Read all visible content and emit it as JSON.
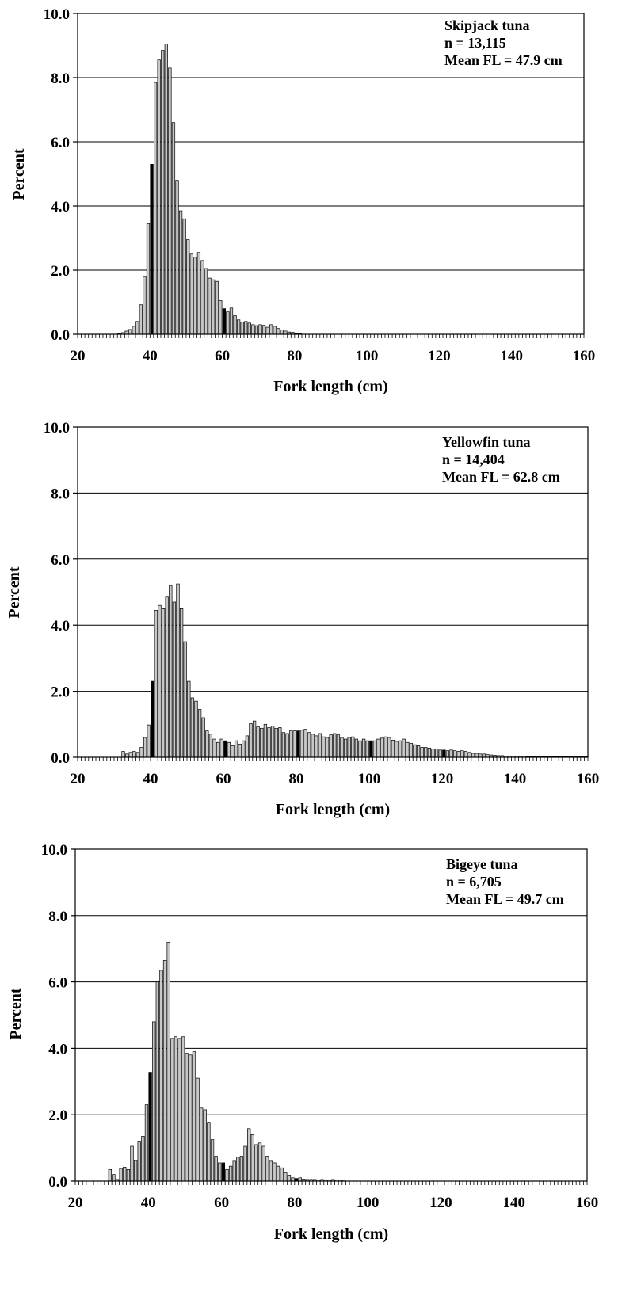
{
  "chart_data": [
    {
      "type": "bar",
      "annotation": [
        "Skipjack tuna",
        "n = 13,115",
        "Mean FL = 47.9 cm"
      ],
      "xlabel": "Fork length (cm)",
      "ylabel": "Percent",
      "xlim": [
        20,
        160
      ],
      "ylim": [
        0,
        10
      ],
      "xticks": [
        "20",
        "40",
        "60",
        "80",
        "100",
        "120",
        "140",
        "160"
      ],
      "yticks": [
        "0.0",
        "2.0",
        "4.0",
        "6.0",
        "8.0",
        "10.0"
      ],
      "grid": "horizontal",
      "bar_color": "#c8c8c8",
      "highlight_color": "#000000",
      "highlight_lengths": [
        40,
        60,
        80,
        100,
        120
      ],
      "x": [
        31,
        32,
        33,
        34,
        35,
        36,
        37,
        38,
        39,
        40,
        41,
        42,
        43,
        44,
        45,
        46,
        47,
        48,
        49,
        50,
        51,
        52,
        53,
        54,
        55,
        56,
        57,
        58,
        59,
        60,
        61,
        62,
        63,
        64,
        65,
        66,
        67,
        68,
        69,
        70,
        71,
        72,
        73,
        74,
        75,
        76,
        77,
        78,
        79,
        80,
        81
      ],
      "values": [
        0.02,
        0.05,
        0.1,
        0.15,
        0.25,
        0.4,
        0.92,
        1.8,
        3.45,
        5.3,
        7.85,
        8.55,
        8.85,
        9.05,
        8.3,
        6.6,
        4.8,
        3.85,
        3.6,
        2.95,
        2.5,
        2.4,
        2.55,
        2.3,
        2.05,
        1.75,
        1.7,
        1.65,
        1.05,
        0.8,
        0.7,
        0.82,
        0.58,
        0.45,
        0.38,
        0.4,
        0.35,
        0.3,
        0.27,
        0.3,
        0.28,
        0.22,
        0.3,
        0.25,
        0.18,
        0.14,
        0.1,
        0.07,
        0.06,
        0.04,
        0.02
      ]
    },
    {
      "type": "bar",
      "annotation": [
        "Yellowfin tuna",
        "n = 14,404",
        "Mean FL = 62.8 cm"
      ],
      "xlabel": "Fork length (cm)",
      "ylabel": "Percent",
      "xlim": [
        20,
        160
      ],
      "ylim": [
        0,
        10
      ],
      "xticks": [
        "20",
        "40",
        "60",
        "80",
        "100",
        "120",
        "140",
        "160"
      ],
      "yticks": [
        "0.0",
        "2.0",
        "4.0",
        "6.0",
        "8.0",
        "10.0"
      ],
      "grid": "horizontal",
      "bar_color": "#c8c8c8",
      "highlight_color": "#000000",
      "highlight_lengths": [
        40,
        60,
        80,
        100,
        120
      ],
      "x": [
        32,
        33,
        34,
        35,
        36,
        37,
        38,
        39,
        40,
        41,
        42,
        43,
        44,
        45,
        46,
        47,
        48,
        49,
        50,
        51,
        52,
        53,
        54,
        55,
        56,
        57,
        58,
        59,
        60,
        61,
        62,
        63,
        64,
        65,
        66,
        67,
        68,
        69,
        70,
        71,
        72,
        73,
        74,
        75,
        76,
        77,
        78,
        79,
        80,
        81,
        82,
        83,
        84,
        85,
        86,
        87,
        88,
        89,
        90,
        91,
        92,
        93,
        94,
        95,
        96,
        97,
        98,
        99,
        100,
        101,
        102,
        103,
        104,
        105,
        106,
        107,
        108,
        109,
        110,
        111,
        112,
        113,
        114,
        115,
        116,
        117,
        118,
        119,
        120,
        121,
        122,
        123,
        124,
        125,
        126,
        127,
        128,
        129,
        130,
        131,
        132,
        133,
        134,
        135,
        136,
        137,
        138,
        139,
        140,
        141,
        142,
        143,
        144,
        145,
        146,
        147,
        148,
        149,
        150,
        151,
        152,
        153,
        154,
        155,
        156,
        157,
        158,
        159
      ],
      "values": [
        0.18,
        0.1,
        0.15,
        0.18,
        0.15,
        0.3,
        0.6,
        0.98,
        2.3,
        4.45,
        4.6,
        4.5,
        4.85,
        5.2,
        4.7,
        5.25,
        4.5,
        3.5,
        2.3,
        1.8,
        1.7,
        1.45,
        1.2,
        0.8,
        0.7,
        0.55,
        0.45,
        0.55,
        0.5,
        0.45,
        0.35,
        0.5,
        0.4,
        0.5,
        0.65,
        1.02,
        1.1,
        0.92,
        0.88,
        1.0,
        0.9,
        0.95,
        0.88,
        0.9,
        0.75,
        0.72,
        0.8,
        0.8,
        0.8,
        0.82,
        0.85,
        0.75,
        0.7,
        0.65,
        0.72,
        0.62,
        0.6,
        0.68,
        0.72,
        0.68,
        0.6,
        0.55,
        0.6,
        0.62,
        0.55,
        0.5,
        0.55,
        0.5,
        0.5,
        0.5,
        0.55,
        0.58,
        0.62,
        0.6,
        0.52,
        0.48,
        0.5,
        0.55,
        0.45,
        0.42,
        0.38,
        0.35,
        0.3,
        0.3,
        0.28,
        0.25,
        0.25,
        0.22,
        0.22,
        0.2,
        0.22,
        0.2,
        0.18,
        0.2,
        0.18,
        0.15,
        0.12,
        0.12,
        0.1,
        0.1,
        0.08,
        0.07,
        0.06,
        0.05,
        0.05,
        0.04,
        0.04,
        0.04,
        0.03,
        0.03,
        0.03,
        0.02,
        0.02,
        0.02,
        0.02,
        0.02,
        0.02,
        0.02,
        0.02,
        0.02,
        0.02,
        0.02,
        0.02,
        0.02,
        0.02,
        0.02,
        0.02,
        0.02
      ]
    },
    {
      "type": "bar",
      "annotation": [
        "Bigeye tuna",
        "n = 6,705",
        "Mean FL = 49.7 cm"
      ],
      "xlabel": "Fork length (cm)",
      "ylabel": "Percent",
      "xlim": [
        20,
        160
      ],
      "ylim": [
        0,
        10
      ],
      "xticks": [
        "20",
        "40",
        "60",
        "80",
        "100",
        "120",
        "140",
        "160"
      ],
      "yticks": [
        "0.0",
        "2.0",
        "4.0",
        "6.0",
        "8.0",
        "10.0"
      ],
      "grid": "horizontal",
      "bar_color": "#c8c8c8",
      "highlight_color": "#000000",
      "highlight_lengths": [
        40,
        60,
        80,
        100,
        120
      ],
      "x": [
        29,
        30,
        31,
        32,
        33,
        34,
        35,
        36,
        37,
        38,
        39,
        40,
        41,
        42,
        43,
        44,
        45,
        46,
        47,
        48,
        49,
        50,
        51,
        52,
        53,
        54,
        55,
        56,
        57,
        58,
        59,
        60,
        61,
        62,
        63,
        64,
        65,
        66,
        67,
        68,
        69,
        70,
        71,
        72,
        73,
        74,
        75,
        76,
        77,
        78,
        79,
        80,
        81,
        82,
        83,
        84,
        85,
        86,
        87,
        88,
        89,
        90,
        91,
        92,
        93
      ],
      "values": [
        0.35,
        0.2,
        0.05,
        0.38,
        0.42,
        0.35,
        1.05,
        0.62,
        1.18,
        1.35,
        2.3,
        3.28,
        4.8,
        6.0,
        6.35,
        6.65,
        7.2,
        4.3,
        4.35,
        4.3,
        4.35,
        3.85,
        3.8,
        3.9,
        3.1,
        2.2,
        2.15,
        1.75,
        1.25,
        0.75,
        0.55,
        0.55,
        0.35,
        0.45,
        0.6,
        0.72,
        0.75,
        1.05,
        1.58,
        1.4,
        1.1,
        1.15,
        1.05,
        0.75,
        0.6,
        0.55,
        0.45,
        0.4,
        0.25,
        0.18,
        0.1,
        0.08,
        0.1,
        0.06,
        0.05,
        0.05,
        0.05,
        0.04,
        0.05,
        0.04,
        0.04,
        0.05,
        0.04,
        0.04,
        0.03
      ]
    }
  ]
}
